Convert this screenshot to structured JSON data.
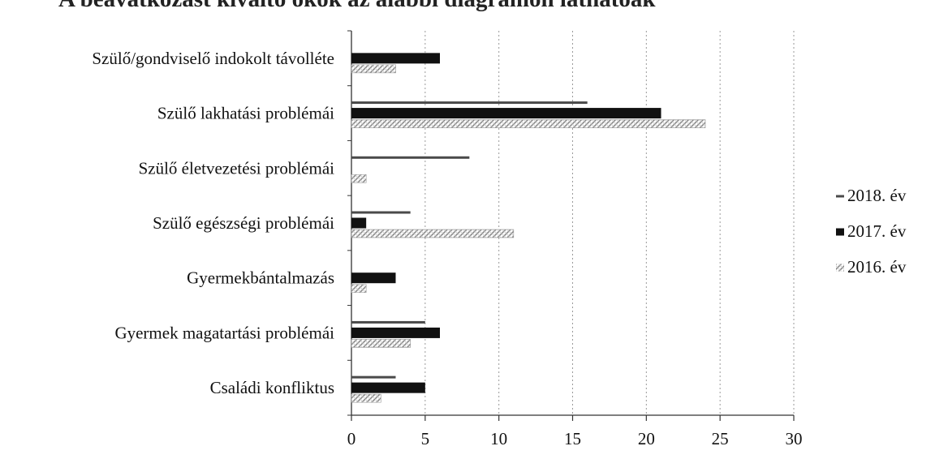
{
  "chart_data": {
    "type": "bar",
    "orientation": "horizontal",
    "title": "A beavatkozást kiváltó okok az alábbi diagramon láthatóak",
    "categories": [
      "Szülő/gondviselő indokolt távolléte",
      "Szülő lakhatási problémái",
      "Szülő életvezetési problémái",
      "Szülő egészségi problémái",
      "Gyermekbántalmazás",
      "Gyermek magatartási problémái",
      "Családi konfliktus"
    ],
    "series": [
      {
        "name": "2018. év",
        "values": [
          0,
          16,
          8,
          4,
          0,
          5,
          3
        ],
        "color": "#4a4a4a",
        "style": "thin"
      },
      {
        "name": "2017. év",
        "values": [
          6,
          21,
          0,
          1,
          3,
          6,
          5
        ],
        "color": "#111111",
        "style": "solid"
      },
      {
        "name": "2016. év",
        "values": [
          3,
          24,
          1,
          11,
          1,
          4,
          2
        ],
        "color": "#b5b5b5",
        "style": "hatched"
      }
    ],
    "xlim": [
      0,
      30
    ],
    "xticks": [
      0,
      5,
      10,
      15,
      20,
      25,
      30
    ],
    "xlabel": "",
    "ylabel": "",
    "grid": "vertical",
    "legend_position": "right"
  }
}
